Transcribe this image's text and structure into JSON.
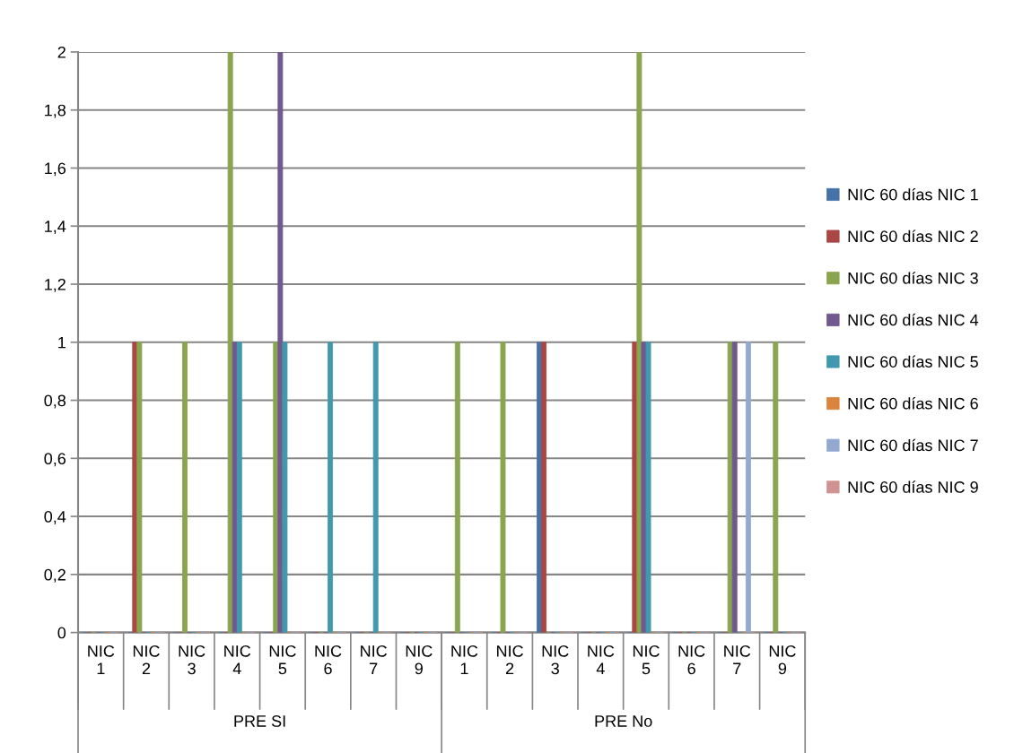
{
  "chart_data": {
    "type": "bar",
    "categories": [
      "NIC 1",
      "NIC 2",
      "NIC 3",
      "NIC 4",
      "NIC 5",
      "NIC 6",
      "NIC 7",
      "NIC 9",
      "NIC 1",
      "NIC 2",
      "NIC 3",
      "NIC 4",
      "NIC 5",
      "NIC 6",
      "NIC 7",
      "NIC 9"
    ],
    "series": [
      {
        "name": "NIC 60 días NIC 1",
        "color": "#4572a7",
        "values": [
          0,
          0,
          0,
          0,
          0,
          0,
          0,
          0,
          0,
          0,
          1,
          0,
          0,
          0,
          0,
          0
        ]
      },
      {
        "name": "NIC 60 días NIC 2",
        "color": "#aa4643",
        "values": [
          0,
          1,
          0,
          0,
          0,
          0,
          0,
          0,
          0,
          0,
          1,
          0,
          1,
          0,
          0,
          0
        ]
      },
      {
        "name": "NIC 60 días NIC 3",
        "color": "#89a54e",
        "values": [
          0,
          1,
          1,
          2,
          1,
          0,
          0,
          0,
          1,
          1,
          0,
          0,
          2,
          0,
          1,
          1
        ]
      },
      {
        "name": "NIC 60 días NIC 4",
        "color": "#71588f",
        "values": [
          0,
          0,
          0,
          1,
          2,
          0,
          0,
          0,
          0,
          0,
          0,
          0,
          1,
          0,
          1,
          0
        ]
      },
      {
        "name": "NIC 60 días NIC 5",
        "color": "#4198af",
        "values": [
          0,
          0,
          0,
          1,
          1,
          1,
          1,
          0,
          0,
          0,
          0,
          0,
          1,
          0,
          0,
          0
        ]
      },
      {
        "name": "NIC 60 días NIC 6",
        "color": "#db843d",
        "values": [
          0,
          0,
          0,
          0,
          0,
          0,
          0,
          0,
          0,
          0,
          0,
          0,
          0,
          0,
          0,
          0
        ]
      },
      {
        "name": "NIC 60 días NIC 7",
        "color": "#93a9cf",
        "values": [
          0,
          0,
          0,
          0,
          0,
          0,
          0,
          0,
          0,
          0,
          0,
          0,
          0,
          0,
          1,
          0
        ]
      },
      {
        "name": "NIC 60 días NIC 9",
        "color": "#d19392",
        "values": [
          0,
          0,
          0,
          0,
          0,
          0,
          0,
          0,
          0,
          0,
          0,
          0,
          0,
          0,
          0,
          0
        ]
      }
    ],
    "ylim": [
      0,
      2
    ],
    "yticks": [
      0,
      {
        "value": 0.2,
        "label": "0,2"
      },
      {
        "value": 0.4,
        "label": "0,4"
      },
      {
        "value": 0.6,
        "label": "0,6"
      },
      {
        "value": 0.8,
        "label": "0,8"
      },
      1,
      {
        "value": 1.2,
        "label": "1,2"
      },
      {
        "value": 1.4,
        "label": "1,4"
      },
      {
        "value": 1.6,
        "label": "1,6"
      },
      {
        "value": 1.8,
        "label": "1,8"
      },
      2
    ],
    "annotations": [
      "PRE SI",
      "PRE No"
    ],
    "grid": "y",
    "legend": "right"
  }
}
